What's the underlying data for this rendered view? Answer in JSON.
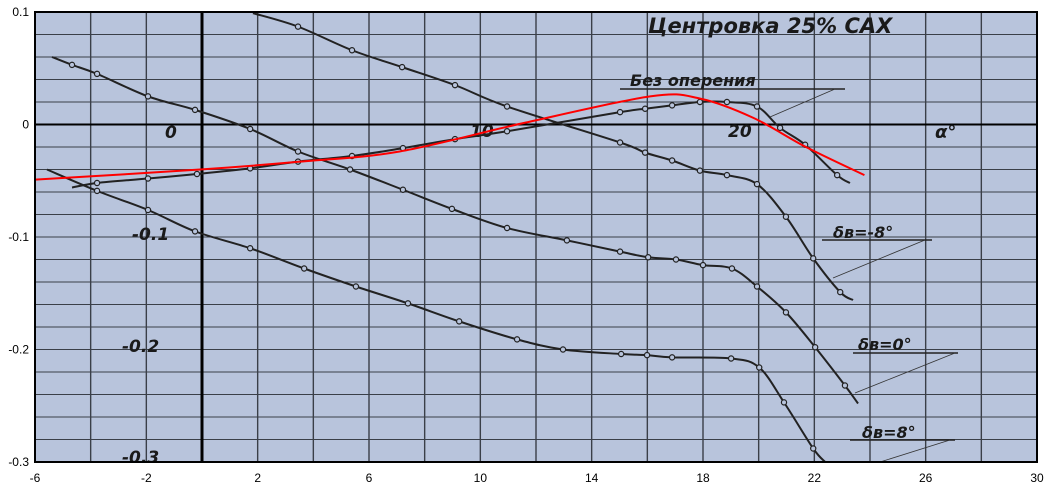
{
  "chart_data": {
    "type": "line",
    "title": "",
    "xlabel": "",
    "ylabel": "",
    "xlim": [
      -6,
      30
    ],
    "ylim": [
      -0.3,
      0.1
    ],
    "x_ticks": [
      "-6",
      "-2",
      "2",
      "6",
      "10",
      "14",
      "18",
      "22",
      "26",
      "30"
    ],
    "y_ticks": [
      "0.1",
      "0",
      "-0.1",
      "-0.2",
      "-0.3"
    ],
    "grid": true,
    "background_scan": {
      "annotation_title": "Центровка 25% САХ",
      "axis_label_alpha": "α°",
      "scan_tick_labels": {
        "x0": "0",
        "x10": "10",
        "x20": "20",
        "ym01": "-0.1",
        "ym02": "-0.2",
        "ym03": "-0.3"
      },
      "paper_color": "#b8c4dc",
      "ink_color": "#222222"
    },
    "series": [
      {
        "name": "Без оперения",
        "color": "#222222",
        "x": [
          -4.67,
          -3.77,
          -1.94,
          -0.18,
          1.73,
          3.45,
          5.39,
          7.22,
          9.09,
          10.96,
          15.02,
          15.92,
          16.89,
          17.89,
          18.86,
          19.94,
          20.77,
          21.67,
          22.82,
          23.28
        ],
        "y": [
          -0.056,
          -0.052,
          -0.048,
          -0.044,
          -0.039,
          -0.033,
          -0.028,
          -0.021,
          -0.013,
          -0.006,
          0.011,
          0.014,
          0.017,
          0.02,
          0.02,
          0.016,
          -0.003,
          -0.018,
          -0.045,
          -0.052
        ]
      },
      {
        "name": "δв=-8°",
        "color": "#222222",
        "x": [
          1.83,
          3.45,
          5.39,
          7.19,
          9.09,
          10.96,
          15.02,
          15.92,
          16.89,
          17.89,
          18.86,
          19.94,
          20.98,
          21.96,
          22.93,
          23.39
        ],
        "y": [
          0.099,
          0.087,
          0.066,
          0.051,
          0.035,
          0.016,
          -0.016,
          -0.025,
          -0.032,
          -0.041,
          -0.045,
          -0.053,
          -0.082,
          -0.119,
          -0.149,
          -0.156
        ]
      },
      {
        "name": "δв=0°",
        "color": "#222222",
        "x": [
          -5.39,
          -4.67,
          -3.77,
          -1.94,
          -0.25,
          1.73,
          3.45,
          5.32,
          7.22,
          8.98,
          10.96,
          13.11,
          15.02,
          16.03,
          17.03,
          18.0,
          19.04,
          19.94,
          20.98,
          22.03,
          23.1,
          23.57
        ],
        "y": [
          0.06,
          0.053,
          0.045,
          0.025,
          0.013,
          -0.004,
          -0.024,
          -0.04,
          -0.058,
          -0.075,
          -0.092,
          -0.103,
          -0.113,
          -0.118,
          -0.12,
          -0.125,
          -0.128,
          -0.144,
          -0.167,
          -0.198,
          -0.232,
          -0.248
        ]
      },
      {
        "name": "δв=8°",
        "color": "#222222",
        "x": [
          -5.57,
          -3.77,
          -1.94,
          -0.25,
          1.73,
          3.67,
          5.53,
          7.4,
          9.24,
          11.32,
          12.97,
          15.06,
          15.99,
          16.89,
          19.01,
          20.02,
          20.91,
          21.96,
          22.39
        ],
        "y": [
          -0.04,
          -0.059,
          -0.076,
          -0.095,
          -0.11,
          -0.128,
          -0.144,
          -0.159,
          -0.175,
          -0.191,
          -0.2,
          -0.204,
          -0.205,
          -0.207,
          -0.208,
          -0.216,
          -0.247,
          -0.288,
          -0.3
        ]
      },
      {
        "color": "#ff0000",
        "x": [
          -6,
          -0.07,
          3.52,
          7.1,
          11.5,
          16.1,
          17.9,
          19.8,
          21.7,
          23.8
        ],
        "y": [
          -0.049,
          -0.04,
          -0.033,
          -0.024,
          0.001,
          0.025,
          0.023,
          0.006,
          -0.02,
          -0.045
        ]
      }
    ]
  }
}
